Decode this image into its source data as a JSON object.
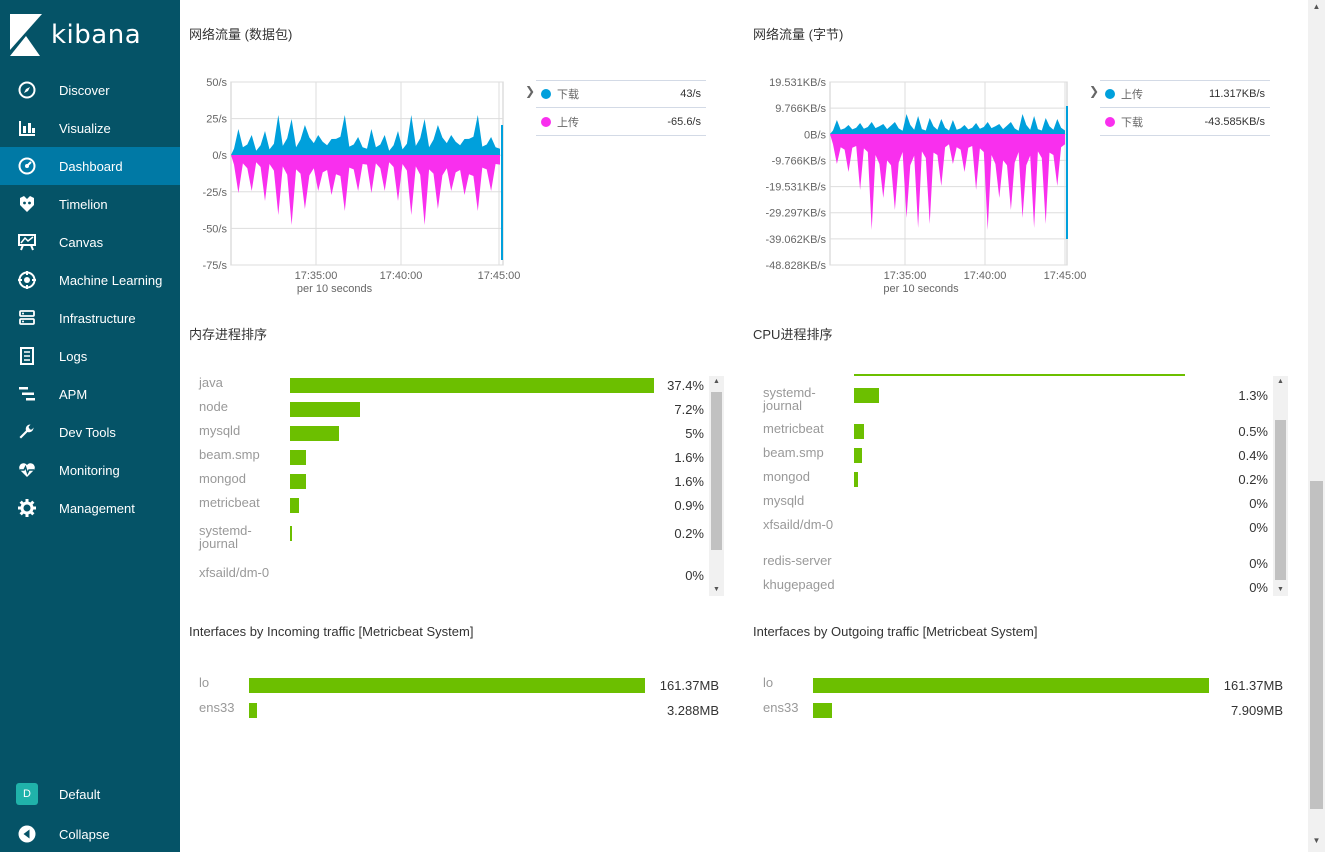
{
  "sidebar": {
    "brand": "kibana",
    "items": [
      {
        "label": "Discover",
        "icon": "compass-icon",
        "active": false
      },
      {
        "label": "Visualize",
        "icon": "bar-chart-icon",
        "active": false
      },
      {
        "label": "Dashboard",
        "icon": "dashboard-icon",
        "active": true
      },
      {
        "label": "Timelion",
        "icon": "timelion-icon",
        "active": false
      },
      {
        "label": "Canvas",
        "icon": "canvas-icon",
        "active": false
      },
      {
        "label": "Machine Learning",
        "icon": "machine-learning-icon",
        "active": false
      },
      {
        "label": "Infrastructure",
        "icon": "infrastructure-icon",
        "active": false
      },
      {
        "label": "Logs",
        "icon": "logs-icon",
        "active": false
      },
      {
        "label": "APM",
        "icon": "apm-icon",
        "active": false
      },
      {
        "label": "Dev Tools",
        "icon": "wrench-icon",
        "active": false
      },
      {
        "label": "Monitoring",
        "icon": "heartbeat-icon",
        "active": false
      },
      {
        "label": "Management",
        "icon": "gear-icon",
        "active": false
      }
    ],
    "space": {
      "badge": "D",
      "label": "Default"
    },
    "collapse_label": "Collapse"
  },
  "colors": {
    "sidebar_bg": "#055367",
    "active_bg": "#0079a5",
    "series_blue": "#00a0dc",
    "series_pink": "#f92fee",
    "bar_green": "#6cbf00"
  },
  "panels": {
    "net_packets": {
      "title": "网络流量 (数据包)",
      "y_ticks": [
        "50/s",
        "25/s",
        "0/s",
        "-25/s",
        "-50/s",
        "-75/s"
      ],
      "x_ticks": [
        "17:35:00",
        "17:40:00",
        "17:45:00"
      ],
      "x_label": "per 10 seconds",
      "legend": [
        {
          "name": "下载",
          "value": "43/s",
          "color": "#00a0dc"
        },
        {
          "name": "上传",
          "value": "-65.6/s",
          "color": "#f92fee"
        }
      ]
    },
    "net_bytes": {
      "title": "网络流量 (字节)",
      "y_ticks": [
        "19.531KB/s",
        "9.766KB/s",
        "0B/s",
        "-9.766KB/s",
        "-19.531KB/s",
        "-29.297KB/s",
        "-39.062KB/s",
        "-48.828KB/s"
      ],
      "x_ticks": [
        "17:35:00",
        "17:40:00",
        "17:45:00"
      ],
      "x_label": "per 10 seconds",
      "legend": [
        {
          "name": "上传",
          "value": "11.317KB/s",
          "color": "#00a0dc"
        },
        {
          "name": "下载",
          "value": "-43.585KB/s",
          "color": "#f92fee"
        }
      ]
    },
    "mem_rank": {
      "title": "内存进程排序",
      "rows": [
        {
          "label": "java",
          "value": "37.4%",
          "pct": 37.4
        },
        {
          "label": "node",
          "value": "7.2%",
          "pct": 7.2
        },
        {
          "label": "mysqld",
          "value": "5%",
          "pct": 5
        },
        {
          "label": "beam.smp",
          "value": "1.6%",
          "pct": 1.6
        },
        {
          "label": "mongod",
          "value": "1.6%",
          "pct": 1.6
        },
        {
          "label": "metricbeat",
          "value": "0.9%",
          "pct": 0.9
        },
        {
          "label": "systemd-journal",
          "value": "0.2%",
          "pct": 0.2
        },
        {
          "label": "xfsaild/dm-0",
          "value": "0%",
          "pct": 0
        }
      ]
    },
    "cpu_rank": {
      "title": "CPU进程排序",
      "rows": [
        {
          "label": "systemd-journal",
          "value": "1.3%",
          "pct": 1.3
        },
        {
          "label": "metricbeat",
          "value": "0.5%",
          "pct": 0.5
        },
        {
          "label": "beam.smp",
          "value": "0.4%",
          "pct": 0.4
        },
        {
          "label": "mongod",
          "value": "0.2%",
          "pct": 0.2
        },
        {
          "label": "mysqld",
          "value": "0%",
          "pct": 0
        },
        {
          "label": "xfsaild/dm-0",
          "value": "0%",
          "pct": 0
        },
        {
          "label": "redis-server",
          "value": "0%",
          "pct": 0
        },
        {
          "label": "khugepaged",
          "value": "0%",
          "pct": 0
        }
      ]
    },
    "if_in": {
      "title": "Interfaces by Incoming traffic [Metricbeat System]",
      "rows": [
        {
          "label": "lo",
          "value": "161.37MB",
          "mb": 161.37
        },
        {
          "label": "ens33",
          "value": "3.288MB",
          "mb": 3.288
        }
      ]
    },
    "if_out": {
      "title": "Interfaces by Outgoing traffic [Metricbeat System]",
      "rows": [
        {
          "label": "lo",
          "value": "161.37MB",
          "mb": 161.37
        },
        {
          "label": "ens33",
          "value": "7.909MB",
          "mb": 7.909
        }
      ]
    }
  }
}
